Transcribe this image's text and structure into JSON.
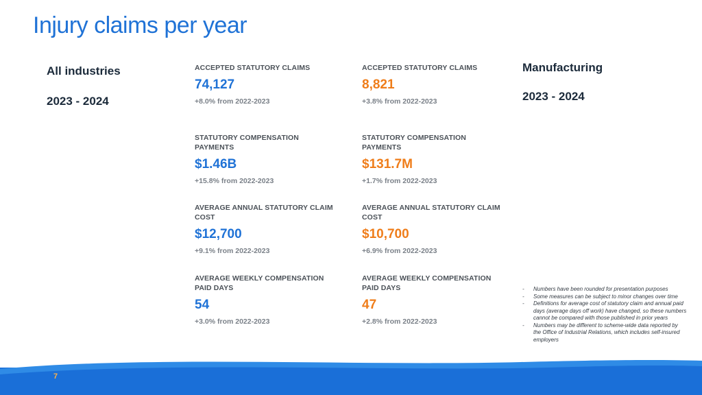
{
  "title": "Injury claims per year",
  "left": {
    "heading": "All industries",
    "period": "2023 - 2024"
  },
  "right": {
    "heading": "Manufacturing",
    "period": "2023 - 2024"
  },
  "metrics": [
    {
      "label": "ACCEPTED STATUTORY CLAIMS",
      "all": {
        "value": "74,127",
        "change": "+8.0% from 2022-2023"
      },
      "mfg": {
        "value": "8,821",
        "change": "+3.8% from 2022-2023"
      }
    },
    {
      "label": "STATUTORY COMPENSATION PAYMENTS",
      "all": {
        "value": "$1.46B",
        "change": "+15.8% from 2022-2023"
      },
      "mfg": {
        "value": "$131.7M",
        "change": "+1.7% from 2022-2023"
      }
    },
    {
      "label": "AVERAGE ANNUAL STATUTORY CLAIM COST",
      "all": {
        "value": "$12,700",
        "change": "+9.1% from 2022-2023"
      },
      "mfg": {
        "value": "$10,700",
        "change": "+6.9% from 2022-2023"
      }
    },
    {
      "label": "AVERAGE WEEKLY COMPENSATION PAID DAYS",
      "all": {
        "value": "54",
        "change": "+3.0% from 2022-2023"
      },
      "mfg": {
        "value": "47",
        "change": "+2.8% from 2022-2023"
      }
    }
  ],
  "notes": [
    "Numbers have been rounded for presentation purposes",
    "Some measures can be subject to minor changes over time",
    "Definitions for average cost of statutory claim and annual paid days (average days off work) have changed, so these numbers cannot be compared with those published in prior years",
    "Numbers may be different to scheme-wide data reported by the Office of Industrial Relations, which includes self-insured employers"
  ],
  "footer": {
    "page_number": "7"
  },
  "colors": {
    "primary_blue": "#1f72d6",
    "accent_orange": "#ef7d1a",
    "footer_blue": "#1a6fd8",
    "footer_light": "#4aa8f0"
  }
}
